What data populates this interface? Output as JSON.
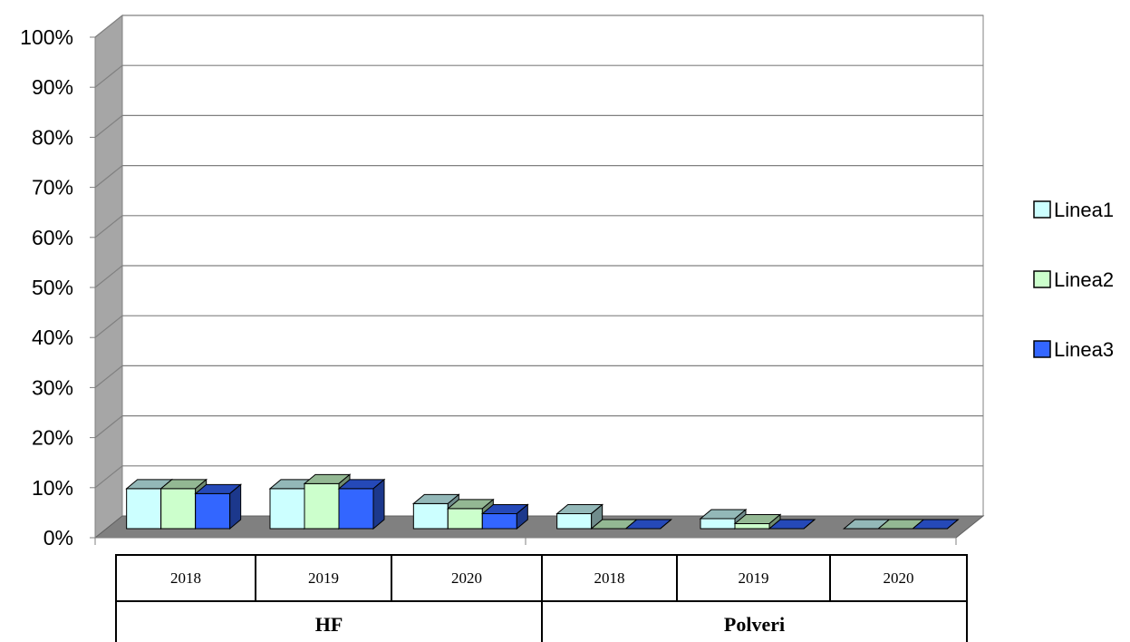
{
  "chart_data": {
    "type": "bar",
    "groups": [
      {
        "label": "HF",
        "categories": [
          "2018",
          "2019",
          "2020"
        ]
      },
      {
        "label": "Polveri",
        "categories": [
          "2018",
          "2019",
          "2020"
        ]
      }
    ],
    "categories": [
      "2018",
      "2019",
      "2020",
      "2018",
      "2019",
      "2020"
    ],
    "series": [
      {
        "name": "Linea1",
        "color": "#CCFFFF",
        "values": [
          8,
          8,
          5,
          3,
          2,
          0
        ]
      },
      {
        "name": "Linea2",
        "color": "#CCFFCC",
        "values": [
          8,
          9,
          4,
          0,
          1,
          0
        ]
      },
      {
        "name": "Linea3",
        "color": "#3366FF",
        "values": [
          7,
          8,
          3,
          0,
          0,
          0
        ]
      }
    ],
    "yticks": [
      "0%",
      "10%",
      "20%",
      "30%",
      "40%",
      "50%",
      "60%",
      "70%",
      "80%",
      "90%",
      "100%"
    ],
    "ylim": [
      0,
      100
    ],
    "grid": true,
    "legend": "right",
    "three_d": true
  }
}
